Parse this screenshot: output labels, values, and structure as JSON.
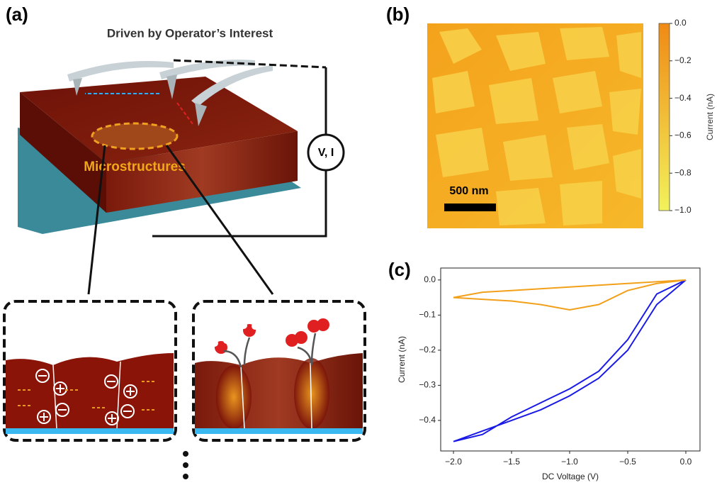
{
  "panel_a": {
    "label": "(a)",
    "title": "Driven by Operator’s Interest",
    "region": "Microstructures",
    "meter": "V, I"
  },
  "panel_b": {
    "label": "(b)",
    "scale_bar": "500 nm",
    "colorbar": {
      "label": "Current (nA)",
      "lim": [
        -1.0,
        0.0
      ],
      "colors": [
        "#f2f25a",
        "#f08a14"
      ],
      "ticks": [
        {
          "value": 0,
          "label": "0.0"
        },
        {
          "value": -0.2,
          "label": "−0.2"
        },
        {
          "value": -0.4,
          "label": "−0.4"
        },
        {
          "value": -0.6,
          "label": "−0.6"
        },
        {
          "value": -0.8,
          "label": "−0.8"
        },
        {
          "value": -1.0,
          "label": "−1.0"
        }
      ]
    }
  },
  "chart_data": {
    "type": "line",
    "panel_label": "(c)",
    "x_label": "DC Voltage (V)",
    "y_label": "Current (nA)",
    "x": [
      0,
      -0.25,
      -0.5,
      -0.75,
      -1,
      -1.25,
      -1.5,
      -1.75,
      -2,
      -1.75,
      -1.5,
      -1.25,
      -1,
      -0.75,
      -0.5,
      -0.25,
      0
    ],
    "series": [
      {
        "color": "#1a1ae6",
        "values": [
          0,
          -0.07,
          -0.2,
          -0.28,
          -0.33,
          -0.37,
          -0.4,
          -0.43,
          -0.46,
          -0.44,
          -0.39,
          -0.35,
          -0.31,
          -0.26,
          -0.17,
          -0.04,
          0
        ]
      },
      {
        "color": "#f2a01a",
        "values": [
          0,
          -0.01,
          -0.03,
          -0.07,
          -0.085,
          -0.07,
          -0.06,
          -0.055,
          -0.05,
          -0.035,
          -0.03,
          -0.025,
          -0.02,
          -0.015,
          -0.01,
          -0.005,
          0
        ]
      }
    ],
    "xlim": [
      -2.11,
      0.122
    ],
    "ylim": [
      -0.487,
      0.034
    ],
    "xticks": [
      {
        "value": -2,
        "label": "−2.0"
      },
      {
        "value": -1.5,
        "label": "−1.5"
      },
      {
        "value": -1,
        "label": "−1.0"
      },
      {
        "value": -0.5,
        "label": "−0.5"
      },
      {
        "value": 0,
        "label": "0.0"
      }
    ],
    "yticks": [
      {
        "value": 0,
        "label": "0.0"
      },
      {
        "value": -0.1,
        "label": "−0.1"
      },
      {
        "value": -0.2,
        "label": "−0.2"
      },
      {
        "value": -0.3,
        "label": "−0.3"
      },
      {
        "value": -0.4,
        "label": "−0.4"
      }
    ]
  }
}
